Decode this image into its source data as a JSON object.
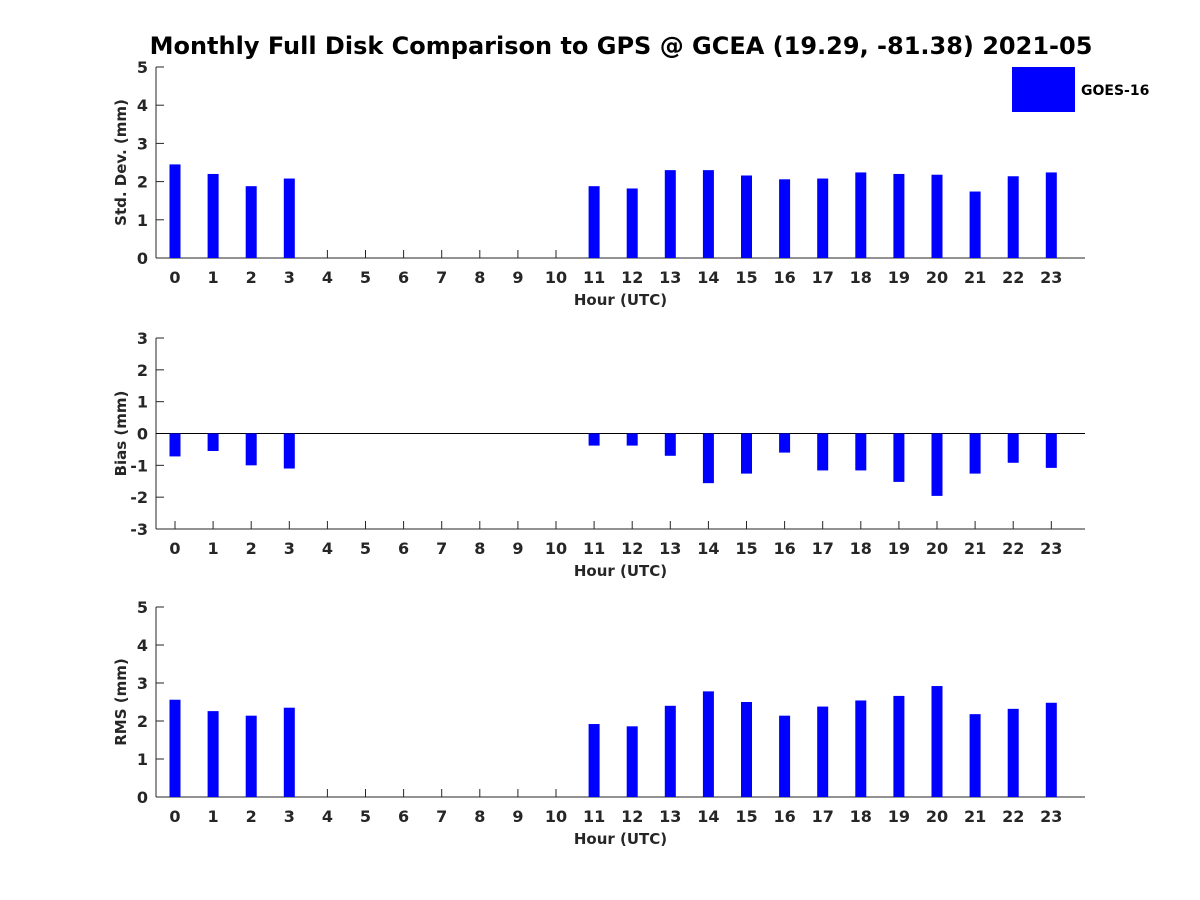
{
  "title": "Monthly Full Disk Comparison to GPS @ GCEA (19.29, -81.38) 2021-05",
  "legend": {
    "label": "GOES-16",
    "color": "#0000ff",
    "placement": "top-right"
  },
  "chart_data": [
    {
      "type": "bar",
      "ylabel": "Std. Dev. (mm)",
      "xlabel": "Hour (UTC)",
      "ylim": [
        0,
        5
      ],
      "yticks": [
        "0",
        "1",
        "2",
        "3",
        "4",
        "5"
      ],
      "categories": [
        "0",
        "1",
        "2",
        "3",
        "4",
        "5",
        "6",
        "7",
        "8",
        "9",
        "10",
        "11",
        "12",
        "13",
        "14",
        "15",
        "16",
        "17",
        "18",
        "19",
        "20",
        "21",
        "22",
        "23"
      ],
      "series": [
        {
          "name": "GOES-16",
          "color": "#0000ff",
          "values": [
            2.45,
            2.2,
            1.88,
            2.08,
            null,
            null,
            null,
            null,
            null,
            null,
            null,
            1.88,
            1.82,
            2.3,
            2.3,
            2.16,
            2.06,
            2.08,
            2.24,
            2.2,
            2.18,
            1.74,
            2.14,
            2.24
          ]
        }
      ]
    },
    {
      "type": "bar",
      "ylabel": "Bias (mm)",
      "xlabel": "Hour (UTC)",
      "ylim": [
        -3,
        3
      ],
      "yticks": [
        "-3",
        "-2",
        "-1",
        "0",
        "1",
        "2",
        "3"
      ],
      "zero_line": true,
      "categories": [
        "0",
        "1",
        "2",
        "3",
        "4",
        "5",
        "6",
        "7",
        "8",
        "9",
        "10",
        "11",
        "12",
        "13",
        "14",
        "15",
        "16",
        "17",
        "18",
        "19",
        "20",
        "21",
        "22",
        "23"
      ],
      "series": [
        {
          "name": "GOES-16",
          "color": "#0000ff",
          "values": [
            -0.72,
            -0.55,
            -1.0,
            -1.1,
            null,
            null,
            null,
            null,
            null,
            null,
            null,
            -0.38,
            -0.38,
            -0.7,
            -1.56,
            -1.26,
            -0.6,
            -1.16,
            -1.16,
            -1.52,
            -1.96,
            -1.26,
            -0.92,
            -1.08
          ]
        }
      ]
    },
    {
      "type": "bar",
      "ylabel": "RMS (mm)",
      "xlabel": "Hour (UTC)",
      "ylim": [
        0,
        5
      ],
      "yticks": [
        "0",
        "1",
        "2",
        "3",
        "4",
        "5"
      ],
      "categories": [
        "0",
        "1",
        "2",
        "3",
        "4",
        "5",
        "6",
        "7",
        "8",
        "9",
        "10",
        "11",
        "12",
        "13",
        "14",
        "15",
        "16",
        "17",
        "18",
        "19",
        "20",
        "21",
        "22",
        "23"
      ],
      "series": [
        {
          "name": "GOES-16",
          "color": "#0000ff",
          "values": [
            2.56,
            2.26,
            2.14,
            2.35,
            null,
            null,
            null,
            null,
            null,
            null,
            null,
            1.92,
            1.86,
            2.4,
            2.78,
            2.5,
            2.14,
            2.38,
            2.54,
            2.66,
            2.92,
            2.18,
            2.32,
            2.48
          ]
        }
      ]
    }
  ]
}
